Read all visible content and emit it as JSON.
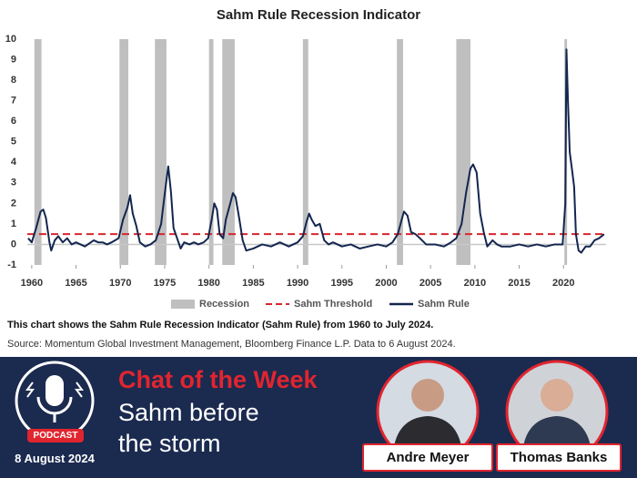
{
  "chart_data": {
    "type": "line",
    "title": "Sahm Rule Recession Indicator",
    "x": [
      1959.6,
      1960.0,
      1960.5,
      1961.0,
      1961.3,
      1961.6,
      1962.0,
      1962.2,
      1962.6,
      1963.0,
      1963.5,
      1964.0,
      1964.5,
      1965.0,
      1966.0,
      1967.0,
      1967.5,
      1968.0,
      1968.5,
      1969.0,
      1969.8,
      1970.3,
      1970.8,
      1971.1,
      1971.4,
      1971.8,
      1972.2,
      1972.8,
      1973.4,
      1974.0,
      1974.6,
      1975.1,
      1975.4,
      1975.7,
      1976.0,
      1976.4,
      1976.8,
      1977.2,
      1977.8,
      1978.3,
      1978.8,
      1979.4,
      1979.9,
      1980.3,
      1980.6,
      1980.9,
      1981.2,
      1981.6,
      1981.9,
      1982.4,
      1982.7,
      1983.0,
      1983.4,
      1983.8,
      1984.2,
      1985.0,
      1986.0,
      1987.0,
      1988.0,
      1989.0,
      1990.0,
      1990.6,
      1991.0,
      1991.3,
      1991.6,
      1992.0,
      1992.5,
      1993.0,
      1993.5,
      1994.0,
      1995.0,
      1996.0,
      1997.0,
      1998.0,
      1999.0,
      2000.0,
      2000.7,
      2001.3,
      2001.8,
      2002.0,
      2002.4,
      2002.8,
      2003.3,
      2003.8,
      2004.5,
      2005.5,
      2006.5,
      2007.3,
      2007.9,
      2008.5,
      2009.0,
      2009.5,
      2009.8,
      2010.2,
      2010.6,
      2011.0,
      2011.4,
      2012.0,
      2012.5,
      2013.0,
      2014.0,
      2015.0,
      2016.0,
      2017.0,
      2018.0,
      2019.0,
      2019.9,
      2020.2,
      2020.33,
      2020.5,
      2020.7,
      2021.0,
      2021.2,
      2021.4,
      2021.7,
      2022.0,
      2022.5,
      2023.0,
      2023.5,
      2024.0,
      2024.3,
      2024.58
    ],
    "series": [
      {
        "name": "Sahm Rule",
        "color": "#13264f",
        "values": [
          0.3,
          0.1,
          0.8,
          1.6,
          1.7,
          1.3,
          0.1,
          -0.3,
          0.2,
          0.4,
          0.1,
          0.3,
          0.0,
          0.1,
          -0.1,
          0.2,
          0.1,
          0.1,
          0.0,
          0.1,
          0.3,
          1.2,
          1.8,
          2.4,
          1.5,
          0.9,
          0.1,
          -0.1,
          0.0,
          0.2,
          1.0,
          2.8,
          3.8,
          2.6,
          0.8,
          0.3,
          -0.2,
          0.1,
          0.0,
          0.1,
          0.0,
          0.1,
          0.3,
          1.2,
          2.0,
          1.7,
          0.5,
          0.3,
          1.2,
          2.0,
          2.5,
          2.3,
          1.3,
          0.2,
          -0.3,
          -0.2,
          0.0,
          -0.1,
          0.1,
          -0.1,
          0.1,
          0.4,
          1.1,
          1.5,
          1.2,
          0.9,
          1.0,
          0.2,
          0.0,
          0.1,
          -0.1,
          0.0,
          -0.2,
          -0.1,
          0.0,
          -0.1,
          0.1,
          0.5,
          1.3,
          1.6,
          1.4,
          0.6,
          0.5,
          0.3,
          0.0,
          0.0,
          -0.1,
          0.1,
          0.3,
          1.0,
          2.5,
          3.7,
          3.9,
          3.5,
          1.5,
          0.6,
          -0.1,
          0.2,
          0.0,
          -0.1,
          -0.1,
          0.0,
          -0.1,
          0.0,
          -0.1,
          0.0,
          0.0,
          2.0,
          9.5,
          7.0,
          4.5,
          3.5,
          2.8,
          0.5,
          -0.3,
          -0.4,
          -0.1,
          -0.1,
          0.2,
          0.3,
          0.4,
          0.5
        ]
      }
    ],
    "threshold": {
      "name": "Sahm Threshold",
      "value": 0.5,
      "color": "#d7262e"
    },
    "recessions": {
      "name": "Recession",
      "color": "#bfbfbf",
      "periods": [
        [
          1960.3,
          1961.1
        ],
        [
          1969.9,
          1970.9
        ],
        [
          1973.9,
          1975.2
        ],
        [
          1980.0,
          1980.5
        ],
        [
          1981.5,
          1982.9
        ],
        [
          1990.6,
          1991.2
        ],
        [
          2001.2,
          2001.9
        ],
        [
          2007.9,
          2009.5
        ],
        [
          2020.1,
          2020.4
        ]
      ]
    },
    "xlim": [
      1959.5,
      2024.8
    ],
    "xticks": [
      1960,
      1965,
      1970,
      1975,
      1980,
      1985,
      1990,
      1995,
      2000,
      2005,
      2010,
      2015,
      2020
    ],
    "ylim": [
      -1,
      10
    ],
    "yticks": [
      -1,
      0,
      1,
      2,
      3,
      4,
      5,
      6,
      7,
      8,
      9,
      10
    ]
  },
  "caption": "This chart shows the Sahm Rule Recession Indicator (Sahm Rule) from 1960 to July 2024.",
  "source": "Source: Momentum Global Investment Management, Bloomberg Finance L.P. Data to 6 August 2024.",
  "banner": {
    "badge": "PODCAST",
    "date": "8 August 2024",
    "heading": "Chat of the Week",
    "subtitle": "Sahm before the storm",
    "hosts": [
      "Andre Meyer",
      "Thomas Banks"
    ]
  }
}
